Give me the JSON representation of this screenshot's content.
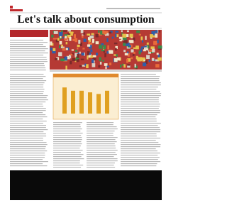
{
  "article": {
    "title": "Let's talk about consumption"
  },
  "figure": {
    "type": "bar",
    "values": [
      8,
      7,
      7,
      6.5,
      6,
      7
    ],
    "ylim": [
      0,
      10
    ],
    "color": "#e0a020"
  }
}
